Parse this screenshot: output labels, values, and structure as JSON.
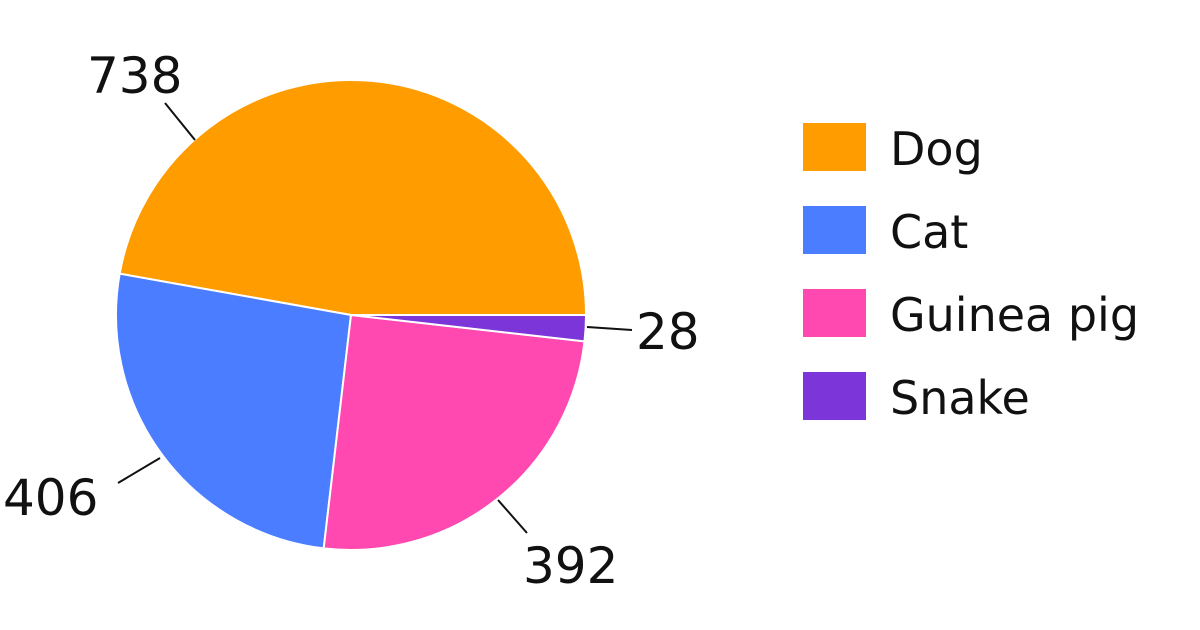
{
  "chart_data": {
    "type": "pie",
    "categories": [
      "Dog",
      "Cat",
      "Guinea pig",
      "Snake"
    ],
    "values": [
      738,
      406,
      392,
      28
    ],
    "colors": [
      "#FF9C00",
      "#4A7DFF",
      "#FF48B0",
      "#7B35D8"
    ],
    "data_labels": [
      "738",
      "406",
      "392",
      "28"
    ],
    "legend_placement": "right",
    "start_angle": "3 o'clock, counter-clockwise"
  }
}
